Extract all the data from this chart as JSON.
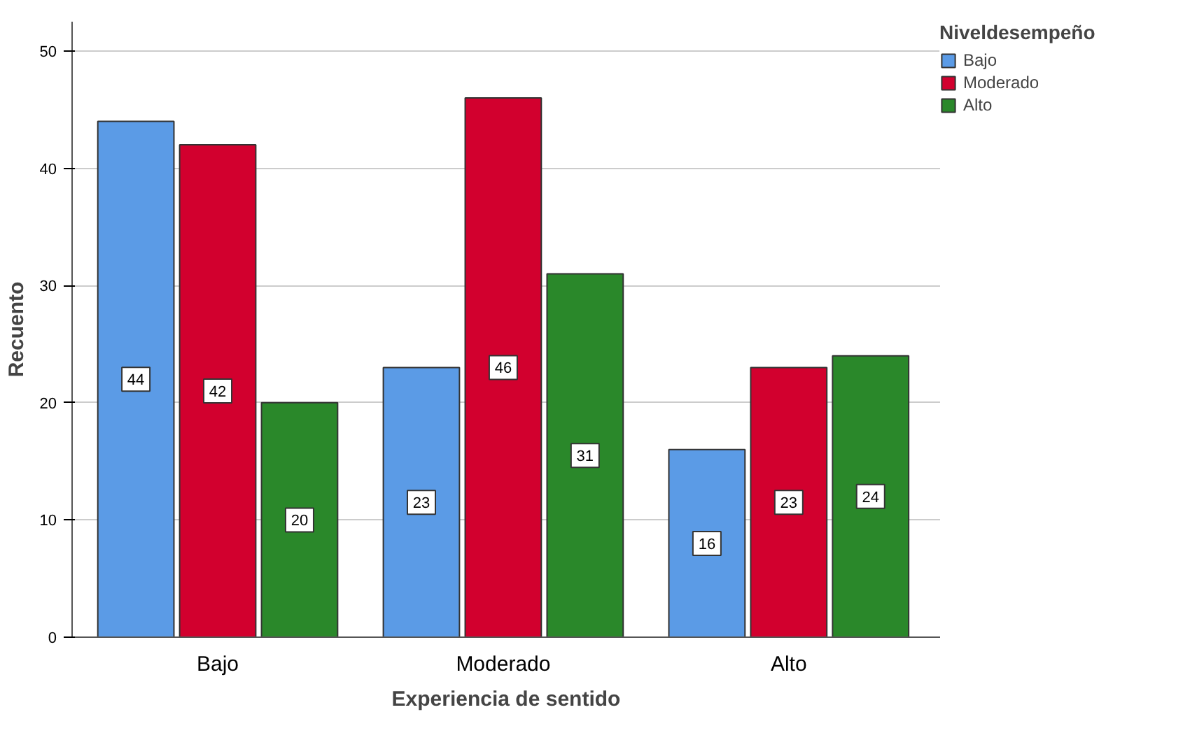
{
  "chart_data": {
    "type": "bar",
    "xlabel": "Experiencia de sentido",
    "ylabel": "Recuento",
    "legend_title": "Niveldesempeño",
    "categories": [
      "Bajo",
      "Moderado",
      "Alto"
    ],
    "series": [
      {
        "name": "Bajo",
        "color": "#5b9be6",
        "values": [
          44,
          23,
          16
        ]
      },
      {
        "name": "Moderado",
        "color": "#d2002e",
        "values": [
          42,
          46,
          23
        ]
      },
      {
        "name": "Alto",
        "color": "#2a882a",
        "values": [
          20,
          31,
          24
        ]
      }
    ],
    "ylim": [
      0,
      52.5
    ],
    "yticks": [
      0,
      10,
      20,
      30,
      40,
      50
    ],
    "grid": "y",
    "legend": "top right",
    "data_labels": true
  }
}
